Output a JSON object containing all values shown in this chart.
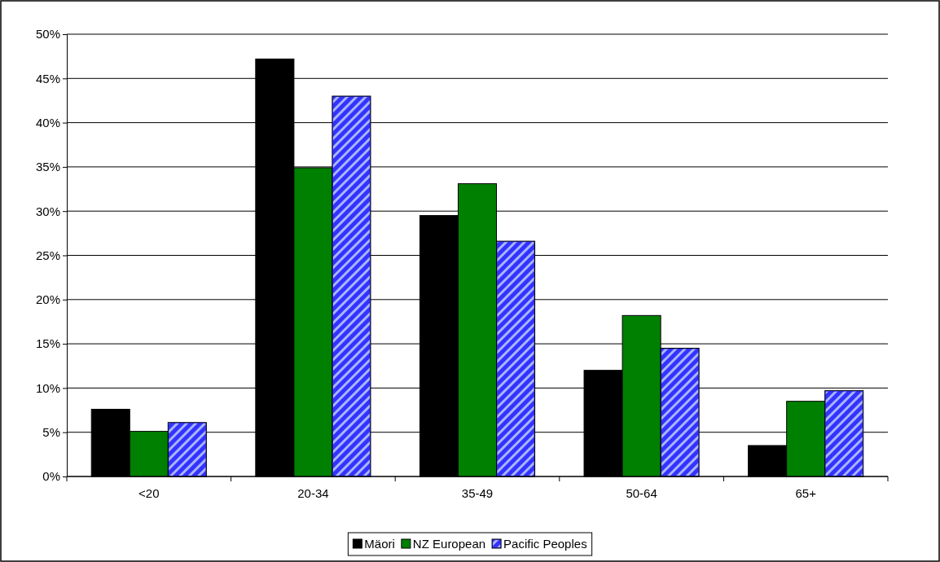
{
  "chart_data": {
    "type": "bar",
    "categories": [
      "<20",
      "20-34",
      "35-49",
      "50-64",
      "65+"
    ],
    "series": [
      {
        "name": "Mäori",
        "color": "#000000",
        "values": [
          7.6,
          47.2,
          29.5,
          12.0,
          3.5
        ]
      },
      {
        "name": "NZ European",
        "color": "#008000",
        "values": [
          5.1,
          34.9,
          33.1,
          18.2,
          8.5
        ]
      },
      {
        "name": "Pacific Peoples",
        "color": "#3333ff",
        "values": [
          6.1,
          43.0,
          26.6,
          14.5,
          9.7
        ]
      }
    ],
    "ylim": [
      0,
      50
    ],
    "yticks": [
      {
        "value": 0,
        "label": "0%"
      },
      {
        "value": 5,
        "label": "5%"
      },
      {
        "value": 10,
        "label": "10%"
      },
      {
        "value": 15,
        "label": "15%"
      },
      {
        "value": 20,
        "label": "20%"
      },
      {
        "value": 25,
        "label": "25%"
      },
      {
        "value": 30,
        "label": "30%"
      },
      {
        "value": 35,
        "label": "35%"
      },
      {
        "value": 40,
        "label": "40%"
      },
      {
        "value": 45,
        "label": "45%"
      },
      {
        "value": 50,
        "label": "50%"
      }
    ],
    "grid": "y",
    "legend": "bottom"
  }
}
